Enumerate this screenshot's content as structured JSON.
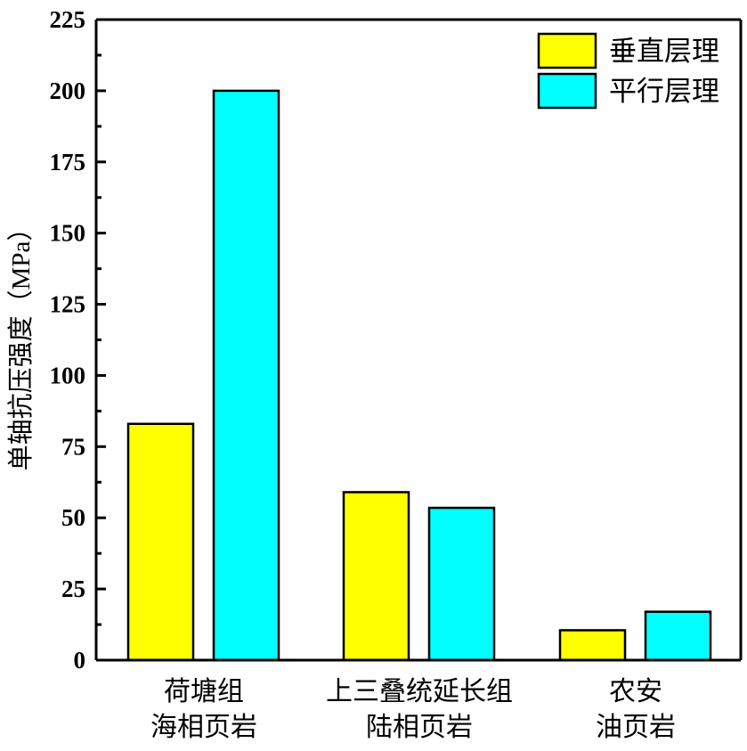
{
  "chart_data": {
    "type": "bar",
    "title": "",
    "xlabel": "",
    "ylabel": "单轴抗压强度（MPa）",
    "ylim": [
      0,
      225
    ],
    "yticks": [
      0,
      25,
      50,
      75,
      100,
      125,
      150,
      175,
      200,
      225
    ],
    "categories": [
      [
        "荷塘组",
        "海相页岩"
      ],
      [
        "上三叠统延长组",
        "陆相页岩"
      ],
      [
        "农安",
        "油页岩"
      ]
    ],
    "series": [
      {
        "name": "垂直层理",
        "color": "#ffff00",
        "values": [
          83,
          59,
          10.5
        ]
      },
      {
        "name": "平行层理",
        "color": "#00ffff",
        "values": [
          200,
          53.5,
          17
        ]
      }
    ],
    "grid": false,
    "legend_position": "top-right"
  }
}
